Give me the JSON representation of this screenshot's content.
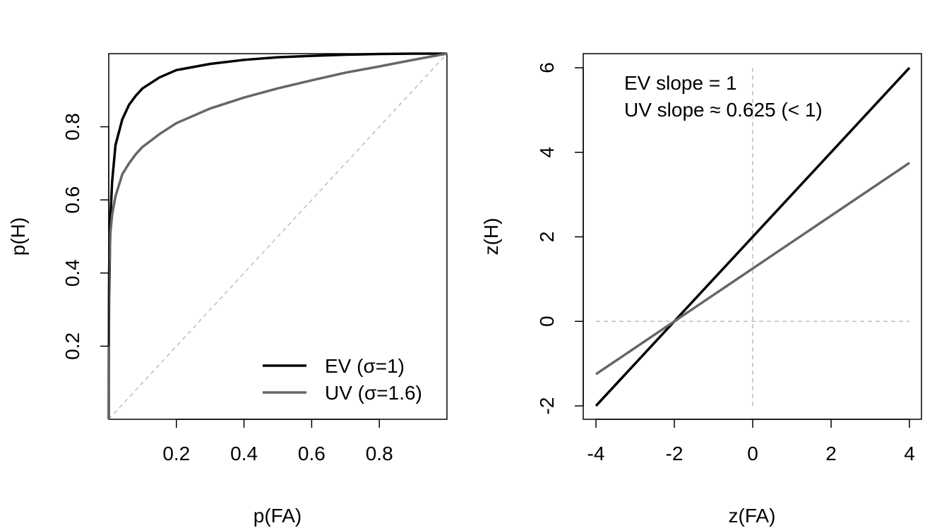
{
  "chart_data": [
    {
      "type": "line",
      "xlabel": "p(FA)",
      "ylabel": "p(H)",
      "xlim": [
        0,
        1
      ],
      "ylim": [
        0,
        1
      ],
      "xticks": [
        0.2,
        0.4,
        0.6,
        0.8
      ],
      "xtick_labels": [
        "0.2",
        "0.4",
        "0.6",
        "0.8"
      ],
      "yticks": [
        0.2,
        0.4,
        0.6,
        0.8
      ],
      "ytick_labels": [
        "0.2",
        "0.4",
        "0.6",
        "0.8"
      ],
      "grid": false,
      "legend_position": "bottom-right",
      "reference_line": {
        "type": "diagonal",
        "from": [
          0,
          0
        ],
        "to": [
          1,
          1
        ],
        "style": "dashed",
        "color": "#bdbdbd"
      },
      "series": [
        {
          "name": "EV (σ=1)",
          "color": "#000000",
          "x": [
            0,
            0.0002,
            0.001,
            0.005,
            0.01,
            0.02,
            0.04,
            0.06,
            0.08,
            0.1,
            0.15,
            0.2,
            0.3,
            0.4,
            0.5,
            0.6,
            0.7,
            0.8,
            0.9,
            1
          ],
          "y": [
            0,
            0.16,
            0.33,
            0.55,
            0.65,
            0.75,
            0.82,
            0.86,
            0.885,
            0.905,
            0.935,
            0.955,
            0.972,
            0.983,
            0.99,
            0.994,
            0.997,
            0.999,
            1.0,
            1.0
          ]
        },
        {
          "name": "UV (σ=1.6)",
          "color": "#666666",
          "x": [
            0,
            0.0002,
            0.001,
            0.005,
            0.01,
            0.02,
            0.04,
            0.06,
            0.08,
            0.1,
            0.15,
            0.2,
            0.3,
            0.4,
            0.5,
            0.6,
            0.7,
            0.8,
            0.9,
            1
          ],
          "y": [
            0,
            0.31,
            0.41,
            0.51,
            0.56,
            0.61,
            0.67,
            0.7,
            0.725,
            0.745,
            0.78,
            0.81,
            0.85,
            0.88,
            0.905,
            0.927,
            0.948,
            0.965,
            0.983,
            1.0
          ]
        }
      ]
    },
    {
      "type": "line",
      "xlabel": "z(FA)",
      "ylabel": "z(H)",
      "xlim": [
        -4,
        4
      ],
      "ylim": [
        -2,
        6
      ],
      "xticks": [
        -4,
        -2,
        0,
        2,
        4
      ],
      "xtick_labels": [
        "-4",
        "-2",
        "0",
        "2",
        "4"
      ],
      "yticks": [
        -2,
        0,
        2,
        4,
        6
      ],
      "ytick_labels": [
        "-2",
        "0",
        "2",
        "4",
        "6"
      ],
      "grid": false,
      "reference_lines": [
        {
          "type": "horizontal",
          "value": 0,
          "style": "dashed",
          "color": "#bdbdbd"
        },
        {
          "type": "vertical",
          "value": 0,
          "style": "dashed",
          "color": "#bdbdbd"
        }
      ],
      "annotations": [
        "EV slope = 1",
        "UV slope ≈ 0.625 (< 1)"
      ],
      "series": [
        {
          "name": "EV",
          "color": "#000000",
          "x": [
            -4,
            4
          ],
          "y": [
            -2,
            6
          ]
        },
        {
          "name": "UV",
          "color": "#666666",
          "x": [
            -4,
            4
          ],
          "y": [
            -1.25,
            3.75
          ]
        }
      ]
    }
  ]
}
